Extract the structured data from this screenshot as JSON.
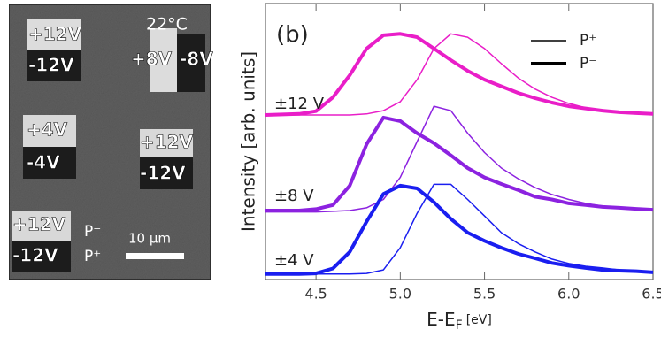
{
  "image": {
    "temperature": "22°C",
    "labels": [
      "+12V",
      "-12V",
      "+8V",
      "-8V",
      "+4V",
      "-4V",
      "+12V",
      "-12V",
      "+12V",
      "-12V"
    ],
    "polarity": [
      "P⁻",
      "P⁺"
    ],
    "scale": "10 µm"
  },
  "chart_data": {
    "type": "line",
    "panel": "(b)",
    "xlabel_parts": [
      "E-E",
      "F",
      "[eV]"
    ],
    "ylabel": "Intensity [arb. units]",
    "x": [
      4.2,
      4.3,
      4.4,
      4.5,
      4.6,
      4.7,
      4.8,
      4.9,
      5.0,
      5.1,
      5.2,
      5.3,
      5.4,
      5.5,
      5.6,
      5.7,
      5.8,
      5.9,
      6.0,
      6.1,
      6.2,
      6.3,
      6.4,
      6.5
    ],
    "xlim": [
      4.2,
      6.5
    ],
    "xticks": [
      4.5,
      {
        "value": 5,
        "label": "5.0"
      },
      5.5,
      {
        "value": 6,
        "label": "6.0"
      },
      6.5
    ],
    "ylim": [
      0,
      10
    ],
    "legend": {
      "entries": [
        "P⁺",
        "P⁻"
      ],
      "widths": [
        1.5,
        4
      ],
      "color": "#000000",
      "position": "upper right"
    },
    "series": [
      {
        "name": "±12 V",
        "color": "#e91ec8",
        "p_plus": [
          5.96,
          5.96,
          5.96,
          5.96,
          5.96,
          5.96,
          6.0,
          6.12,
          6.44,
          7.24,
          8.37,
          8.9,
          8.78,
          8.37,
          7.82,
          7.3,
          6.9,
          6.6,
          6.38,
          6.22,
          6.12,
          6.06,
          6.03,
          6.0
        ],
        "p_minus": [
          5.96,
          5.98,
          6.0,
          6.1,
          6.6,
          7.4,
          8.37,
          8.85,
          8.9,
          8.78,
          8.37,
          7.95,
          7.56,
          7.24,
          7.0,
          6.76,
          6.57,
          6.41,
          6.28,
          6.2,
          6.12,
          6.06,
          6.03,
          6.0
        ]
      },
      {
        "name": "±8 V",
        "color": "#8c22e0",
        "p_plus": [
          2.45,
          2.45,
          2.45,
          2.45,
          2.47,
          2.5,
          2.6,
          2.9,
          3.7,
          5.0,
          6.28,
          6.12,
          5.3,
          4.6,
          4.04,
          3.65,
          3.33,
          3.08,
          2.9,
          2.76,
          2.66,
          2.6,
          2.56,
          2.53
        ],
        "p_minus": [
          2.5,
          2.5,
          2.5,
          2.55,
          2.7,
          3.4,
          4.9,
          5.87,
          5.74,
          5.3,
          4.94,
          4.5,
          4.04,
          3.7,
          3.46,
          3.24,
          3.0,
          2.9,
          2.76,
          2.7,
          2.63,
          2.6,
          2.56,
          2.53
        ]
      },
      {
        "name": "±4 V",
        "color": "#1a1ef0",
        "p_plus": [
          0.2,
          0.2,
          0.2,
          0.2,
          0.2,
          0.2,
          0.22,
          0.35,
          1.15,
          2.4,
          3.45,
          3.45,
          2.9,
          2.3,
          1.7,
          1.3,
          1.0,
          0.74,
          0.58,
          0.48,
          0.42,
          0.35,
          0.32,
          0.29
        ],
        "p_minus": [
          0.2,
          0.2,
          0.2,
          0.22,
          0.4,
          1.0,
          2.1,
          3.1,
          3.4,
          3.3,
          2.8,
          2.2,
          1.7,
          1.4,
          1.15,
          0.93,
          0.77,
          0.6,
          0.5,
          0.42,
          0.35,
          0.32,
          0.3,
          0.26
        ]
      }
    ]
  }
}
